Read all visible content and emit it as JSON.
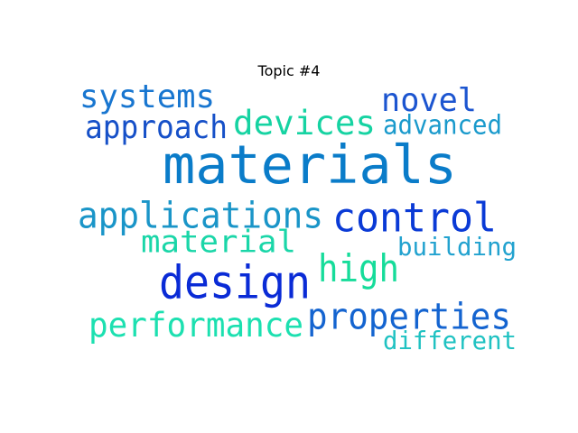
{
  "chart_data": {
    "type": "wordcloud",
    "title": "Topic #4",
    "words": [
      {
        "text": "materials",
        "weight": 1.0,
        "color": "#0a7cc9"
      },
      {
        "text": "design",
        "weight": 0.8,
        "color": "#0a2bd6"
      },
      {
        "text": "control",
        "weight": 0.75,
        "color": "#0a3ad6"
      },
      {
        "text": "applications",
        "weight": 0.7,
        "color": "#1a95c8"
      },
      {
        "text": "properties",
        "weight": 0.66,
        "color": "#1464d0"
      },
      {
        "text": "devices",
        "weight": 0.62,
        "color": "#16d3a2"
      },
      {
        "text": "high",
        "weight": 0.62,
        "color": "#16dc9a"
      },
      {
        "text": "systems",
        "weight": 0.6,
        "color": "#1876d0"
      },
      {
        "text": "novel",
        "weight": 0.58,
        "color": "#1c55d0"
      },
      {
        "text": "performance",
        "weight": 0.56,
        "color": "#1ce0b0"
      },
      {
        "text": "approach",
        "weight": 0.54,
        "color": "#1650c8"
      },
      {
        "text": "material",
        "weight": 0.54,
        "color": "#1ad6a8"
      },
      {
        "text": "advanced",
        "weight": 0.48,
        "color": "#1a9acc"
      },
      {
        "text": "building",
        "weight": 0.46,
        "color": "#22a2cf"
      },
      {
        "text": "different",
        "weight": 0.46,
        "color": "#20c2c2"
      }
    ]
  }
}
